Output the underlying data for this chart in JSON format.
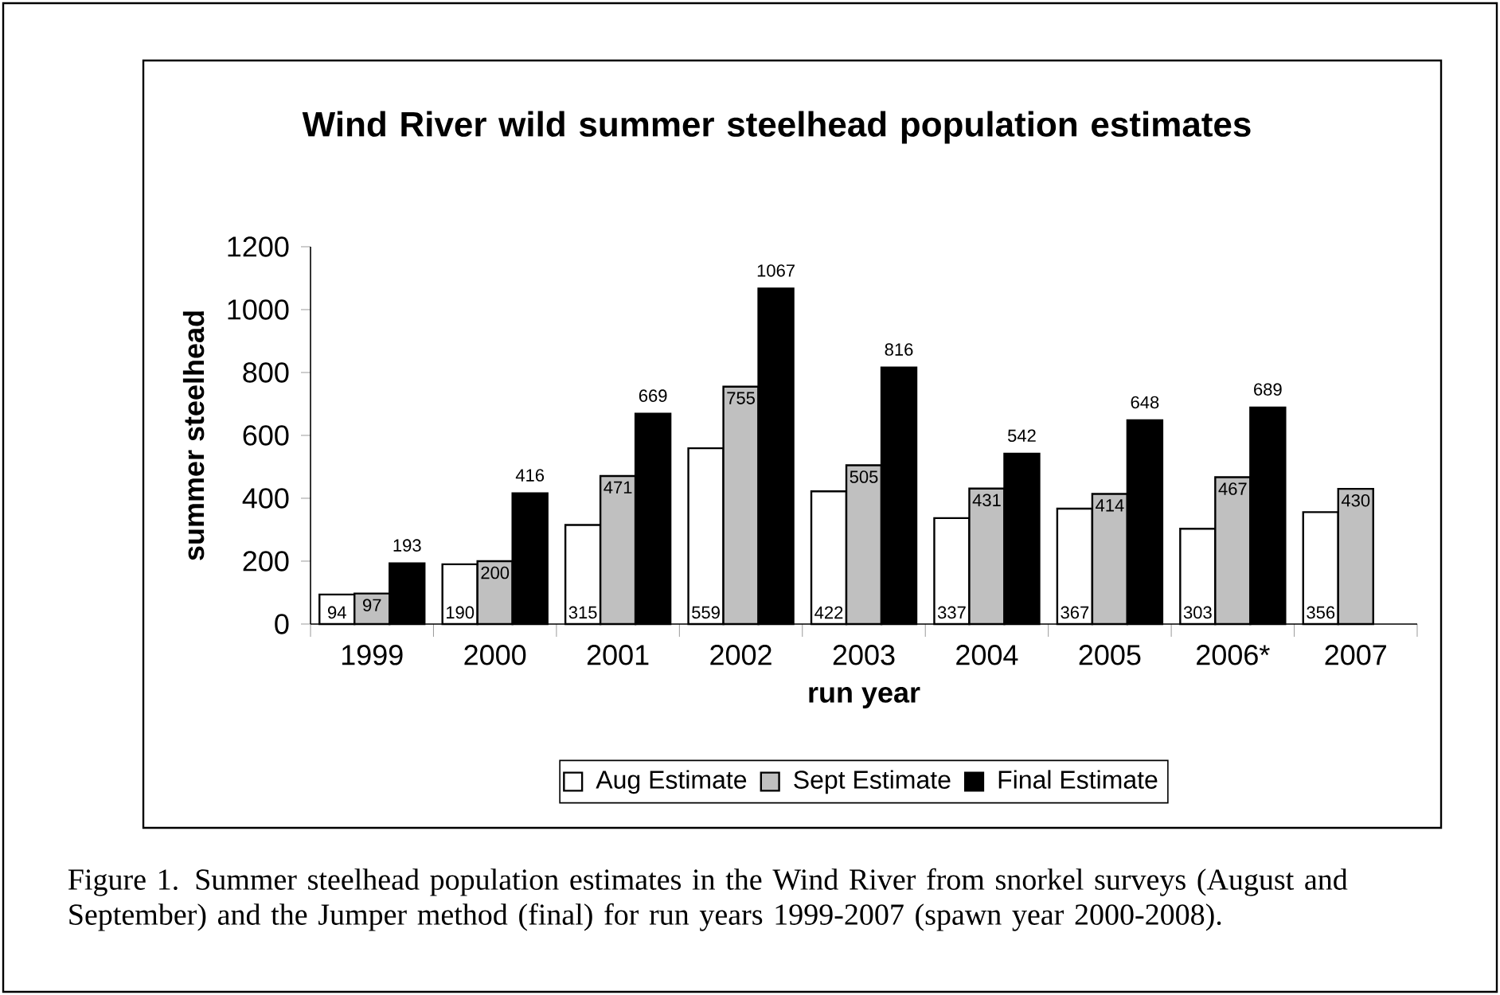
{
  "chart_data": {
    "type": "bar",
    "title": "Wind River wild summer steelhead population estimates",
    "xlabel": "run year",
    "ylabel": "summer steelhead",
    "categories": [
      "1999",
      "2000",
      "2001",
      "2002",
      "2003",
      "2004",
      "2005",
      "2006*",
      "2007"
    ],
    "series": [
      {
        "name": "Aug Estimate",
        "color": "#ffffff",
        "values": [
          94,
          190,
          315,
          559,
          422,
          337,
          367,
          303,
          356
        ]
      },
      {
        "name": "Sept Estimate",
        "color": "#c0c0c0",
        "values": [
          97,
          200,
          471,
          755,
          505,
          431,
          414,
          467,
          430
        ]
      },
      {
        "name": "Final Estimate",
        "color": "#000000",
        "values": [
          193,
          416,
          669,
          1067,
          816,
          542,
          648,
          689,
          null
        ]
      }
    ],
    "ylim": [
      0,
      1200
    ],
    "yticks": [
      0,
      200,
      400,
      600,
      800,
      1000,
      1200
    ],
    "data_labels": true,
    "legend": "bottom",
    "grid": false,
    "annotations": [
      "Figure 1.  Summer steelhead population estimates in the Wind River from snorkel surveys (August and September) and the Jumper method (final) for run years 1999-2007 (spawn year 2000-2008)."
    ]
  }
}
